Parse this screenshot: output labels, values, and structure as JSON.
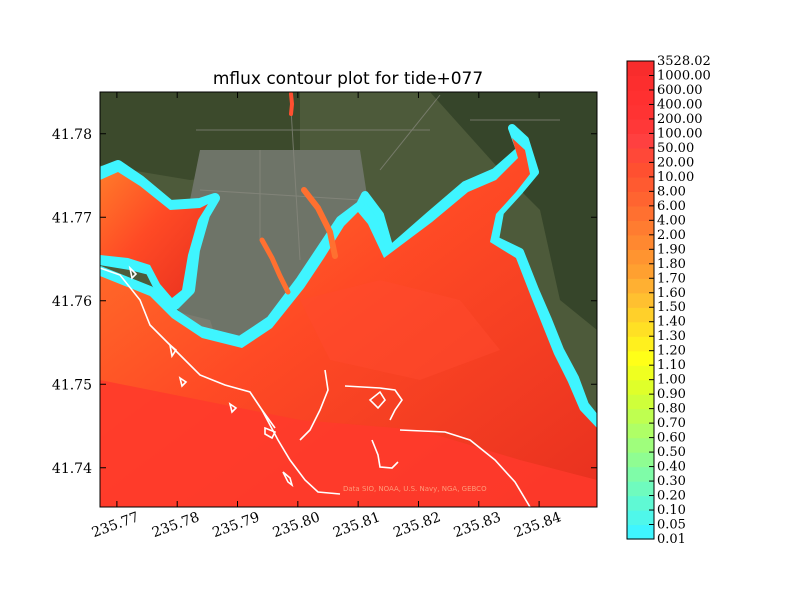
{
  "chart_data": {
    "type": "heatmap",
    "title": "mflux contour plot for tide+077",
    "xlabel": "",
    "ylabel": "",
    "xlim": [
      235.7672,
      235.8496
    ],
    "ylim": [
      41.7353,
      41.785
    ],
    "x_ticks": [
      "235.77",
      "235.78",
      "235.79",
      "235.80",
      "235.81",
      "235.82",
      "235.83",
      "235.84"
    ],
    "y_ticks": [
      "41.74",
      "41.75",
      "41.76",
      "41.77",
      "41.78"
    ],
    "attribution": "Data SIO, NOAA, U.S. Navy, NGA, GEBCO",
    "colorbar": {
      "levels": [
        "0.01",
        "0.05",
        "0.10",
        "0.20",
        "0.30",
        "0.40",
        "0.50",
        "0.60",
        "0.70",
        "0.80",
        "0.90",
        "1.00",
        "1.10",
        "1.20",
        "1.30",
        "1.40",
        "1.50",
        "1.60",
        "1.70",
        "1.80",
        "1.90",
        "2.00",
        "4.00",
        "6.00",
        "8.00",
        "10.00",
        "20.00",
        "50.00",
        "100.00",
        "200.00",
        "400.00",
        "600.00",
        "1000.00",
        "3528.02"
      ],
      "colors": [
        "#3ff5ff",
        "#4ff7ea",
        "#5ff9d4",
        "#6ffbbe",
        "#7ffca8",
        "#8ffd92",
        "#9ffe7c",
        "#afff66",
        "#bfff50",
        "#cfff3a",
        "#dfff2a",
        "#efff20",
        "#ffff18",
        "#fff01e",
        "#ffe024",
        "#ffd02a",
        "#ffc030",
        "#ffb032",
        "#ffa030",
        "#ff9430",
        "#ff8830",
        "#ff7c30",
        "#ff7030",
        "#ff6430",
        "#ff5a30",
        "#ff5030",
        "#ff4838",
        "#ff4040",
        "#ff3838",
        "#ff3333",
        "#ff3030",
        "#fc2e2e",
        "#f82c2c"
      ]
    }
  }
}
